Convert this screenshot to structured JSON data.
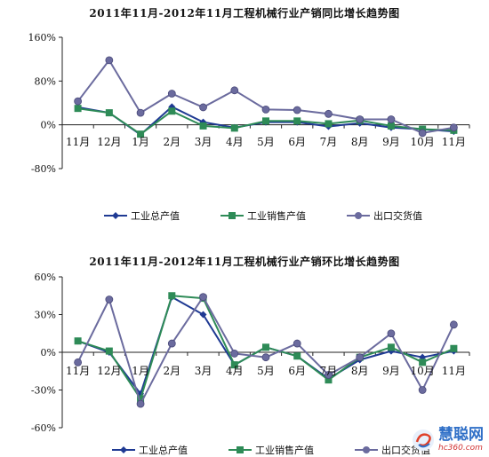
{
  "chart_data": [
    {
      "type": "line",
      "title": "2011年11月-2012年11月工程机械行业产销同比增长趋势图",
      "categories": [
        "11月",
        "12月",
        "1月",
        "2月",
        "3月",
        "4月",
        "5月",
        "6月",
        "7月",
        "8月",
        "9月",
        "10月",
        "11月"
      ],
      "series": [
        {
          "name": "工业总产值",
          "color": "#1f3a93",
          "marker": "diamond",
          "values": [
            32,
            22,
            -18,
            33,
            5,
            -5,
            5,
            5,
            -3,
            3,
            -5,
            -8,
            -12
          ]
        },
        {
          "name": "工业销售产值",
          "color": "#2e8b57",
          "marker": "square",
          "values": [
            30,
            22,
            -17,
            25,
            -2,
            -6,
            7,
            7,
            2,
            8,
            -2,
            -8,
            -10
          ]
        },
        {
          "name": "出口交货值",
          "color": "#6b6b9e",
          "marker": "circle",
          "values": [
            43,
            118,
            22,
            57,
            32,
            63,
            28,
            27,
            20,
            10,
            10,
            -15,
            -5
          ]
        }
      ],
      "yticks": [
        "160%",
        "80%",
        "0%",
        "-80%"
      ],
      "ytick_values": [
        160,
        80,
        0,
        -80
      ],
      "ylim": [
        -80,
        160
      ],
      "legend": "bottom"
    },
    {
      "type": "line",
      "title": "2011年11月-2012年11月工程机械行业产销环比增长趋势图",
      "categories": [
        "11月",
        "12月",
        "1月",
        "2月",
        "3月",
        "4月",
        "5月",
        "6月",
        "7月",
        "8月",
        "9月",
        "10月",
        "11月"
      ],
      "series": [
        {
          "name": "工业总产值",
          "color": "#1f3a93",
          "marker": "diamond",
          "values": [
            9,
            0,
            -33,
            44,
            30,
            -10,
            4,
            -3,
            -21,
            -6,
            1,
            -4,
            1
          ]
        },
        {
          "name": "工业销售产值",
          "color": "#2e8b57",
          "marker": "square",
          "values": [
            9,
            1,
            -37,
            45,
            43,
            -10,
            4,
            -3,
            -22,
            -4,
            4,
            -8,
            3
          ]
        },
        {
          "name": "出口交货值",
          "color": "#6b6b9e",
          "marker": "circle",
          "values": [
            -8,
            42,
            -41,
            7,
            44,
            -1,
            -4,
            7,
            -18,
            -4,
            15,
            -30,
            22
          ]
        }
      ],
      "yticks": [
        "60%",
        "30%",
        "0%",
        "-30%",
        "-60%"
      ],
      "ytick_values": [
        60,
        30,
        0,
        -30,
        -60
      ],
      "ylim": [
        -60,
        60
      ],
      "legend": "bottom"
    }
  ],
  "watermark": {
    "name": "慧聪网",
    "url": "hc360.com"
  }
}
